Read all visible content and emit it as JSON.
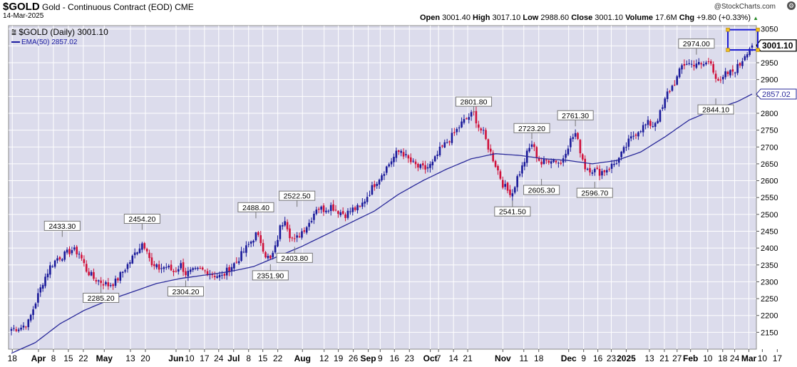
{
  "header": {
    "symbol": "$GOLD",
    "description": "Gold - Continuous Contract (EOD)",
    "exchange": "CME",
    "date": "14-Mar-2025",
    "brand": "@StockCharts.com",
    "open_label": "Open",
    "open": "3001.40",
    "high_label": "High",
    "high": "3017.10",
    "low_label": "Low",
    "low": "2988.60",
    "close_label": "Close",
    "close": "3001.10",
    "volume_label": "Volume",
    "volume": "17.6M",
    "chg_label": "Chg",
    "chg": "+9.80 (+0.33%)"
  },
  "legend": {
    "main": "$GOLD (Daily) 3001.10",
    "ema": "EMA(50) 2857.02"
  },
  "colors": {
    "up": "#1a1a9a",
    "down": "#d0103a",
    "ema": "#2a2a9a",
    "plot_bg": "#dcdcec",
    "grid": "#ffffff",
    "box": "#1a1ad0",
    "box_handle": "#f0c020"
  },
  "chart_data": {
    "type": "candlestick",
    "ylim": [
      2100,
      3060
    ],
    "yticks": [
      2150,
      2200,
      2250,
      2300,
      2350,
      2400,
      2450,
      2500,
      2550,
      2600,
      2650,
      2700,
      2750,
      2800,
      2850,
      2900,
      2950,
      3000,
      3050
    ],
    "price_badge": "3001.10",
    "ema_badge": "2857.02",
    "x_ticks": [
      {
        "label": "18",
        "bold": false,
        "x": 0.005
      },
      {
        "label": "Apr",
        "bold": true,
        "x": 0.04
      },
      {
        "label": "8",
        "bold": false,
        "x": 0.06
      },
      {
        "label": "15",
        "bold": false,
        "x": 0.08
      },
      {
        "label": "22",
        "bold": false,
        "x": 0.1
      },
      {
        "label": "May",
        "bold": true,
        "x": 0.128
      },
      {
        "label": "13",
        "bold": false,
        "x": 0.163
      },
      {
        "label": "20",
        "bold": false,
        "x": 0.183
      },
      {
        "label": "Jun",
        "bold": true,
        "x": 0.224
      },
      {
        "label": "10",
        "bold": false,
        "x": 0.242
      },
      {
        "label": "17",
        "bold": false,
        "x": 0.262
      },
      {
        "label": "24",
        "bold": false,
        "x": 0.281
      },
      {
        "label": "Jul",
        "bold": true,
        "x": 0.301
      },
      {
        "label": "8",
        "bold": false,
        "x": 0.321
      },
      {
        "label": "15",
        "bold": false,
        "x": 0.34
      },
      {
        "label": "22",
        "bold": false,
        "x": 0.36
      },
      {
        "label": "Aug",
        "bold": true,
        "x": 0.393
      },
      {
        "label": "12",
        "bold": false,
        "x": 0.422
      },
      {
        "label": "19",
        "bold": false,
        "x": 0.441
      },
      {
        "label": "26",
        "bold": false,
        "x": 0.461
      },
      {
        "label": "Sep",
        "bold": true,
        "x": 0.481
      },
      {
        "label": "9",
        "bold": false,
        "x": 0.497
      },
      {
        "label": "16",
        "bold": false,
        "x": 0.516
      },
      {
        "label": "23",
        "bold": false,
        "x": 0.536
      },
      {
        "label": "Oct",
        "bold": true,
        "x": 0.564
      },
      {
        "label": "7",
        "bold": false,
        "x": 0.575
      },
      {
        "label": "14",
        "bold": false,
        "x": 0.595
      },
      {
        "label": "21",
        "bold": false,
        "x": 0.614
      },
      {
        "label": "Nov",
        "bold": true,
        "x": 0.661
      },
      {
        "label": "11",
        "bold": false,
        "x": 0.689
      },
      {
        "label": "18",
        "bold": false,
        "x": 0.709
      },
      {
        "label": "Dec",
        "bold": true,
        "x": 0.749
      },
      {
        "label": "9",
        "bold": false,
        "x": 0.769
      },
      {
        "label": "16",
        "bold": false,
        "x": 0.788
      },
      {
        "label": "23",
        "bold": false,
        "x": 0.806
      },
      {
        "label": "2025",
        "bold": true,
        "x": 0.826
      },
      {
        "label": "13",
        "bold": false,
        "x": 0.857
      },
      {
        "label": "21",
        "bold": false,
        "x": 0.877
      },
      {
        "label": "27",
        "bold": false,
        "x": 0.894
      },
      {
        "label": "Feb",
        "bold": true,
        "x": 0.912
      },
      {
        "label": "10",
        "bold": false,
        "x": 0.935
      },
      {
        "label": "18",
        "bold": false,
        "x": 0.955
      },
      {
        "label": "24",
        "bold": false,
        "x": 0.971
      },
      {
        "label": "Mar",
        "bold": true,
        "x": 0.99
      },
      {
        "label": "10",
        "bold": false,
        "x": 1.008
      },
      {
        "label": "17",
        "bold": false,
        "x": 1.028
      }
    ],
    "anchors": [
      [
        0,
        2160
      ],
      [
        4,
        2165
      ],
      [
        7,
        2180
      ],
      [
        10,
        2240
      ],
      [
        13,
        2300
      ],
      [
        16,
        2345
      ],
      [
        19,
        2370
      ],
      [
        22,
        2380
      ],
      [
        25,
        2395
      ],
      [
        28,
        2385
      ],
      [
        31,
        2335
      ],
      [
        34,
        2310
      ],
      [
        37,
        2300
      ],
      [
        40,
        2290
      ],
      [
        43,
        2300
      ],
      [
        46,
        2330
      ],
      [
        49,
        2360
      ],
      [
        52,
        2395
      ],
      [
        54,
        2415
      ],
      [
        56,
        2400
      ],
      [
        58,
        2345
      ],
      [
        61,
        2340
      ],
      [
        64,
        2345
      ],
      [
        67,
        2330
      ],
      [
        70,
        2350
      ],
      [
        72,
        2325
      ],
      [
        75,
        2330
      ],
      [
        78,
        2335
      ],
      [
        81,
        2330
      ],
      [
        84,
        2320
      ],
      [
        87,
        2315
      ],
      [
        90,
        2340
      ],
      [
        93,
        2360
      ],
      [
        96,
        2390
      ],
      [
        99,
        2420
      ],
      [
        101,
        2440
      ],
      [
        103,
        2420
      ],
      [
        105,
        2380
      ],
      [
        107,
        2365
      ],
      [
        109,
        2400
      ],
      [
        111,
        2460
      ],
      [
        113,
        2490
      ],
      [
        115,
        2440
      ],
      [
        117,
        2420
      ],
      [
        120,
        2450
      ],
      [
        123,
        2475
      ],
      [
        126,
        2520
      ],
      [
        129,
        2515
      ],
      [
        132,
        2525
      ],
      [
        135,
        2510
      ],
      [
        138,
        2500
      ],
      [
        141,
        2515
      ],
      [
        144,
        2520
      ],
      [
        147,
        2555
      ],
      [
        150,
        2590
      ],
      [
        153,
        2620
      ],
      [
        156,
        2650
      ],
      [
        159,
        2680
      ],
      [
        161,
        2690
      ],
      [
        163,
        2670
      ],
      [
        165,
        2655
      ],
      [
        168,
        2640
      ],
      [
        171,
        2635
      ],
      [
        174,
        2650
      ],
      [
        177,
        2690
      ],
      [
        180,
        2715
      ],
      [
        183,
        2740
      ],
      [
        186,
        2770
      ],
      [
        189,
        2790
      ],
      [
        191,
        2800
      ],
      [
        193,
        2760
      ],
      [
        195,
        2740
      ],
      [
        197,
        2700
      ],
      [
        199,
        2665
      ],
      [
        201,
        2630
      ],
      [
        203,
        2590
      ],
      [
        205,
        2570
      ],
      [
        207,
        2565
      ],
      [
        209,
        2610
      ],
      [
        211,
        2640
      ],
      [
        213,
        2680
      ],
      [
        215,
        2710
      ],
      [
        217,
        2675
      ],
      [
        219,
        2650
      ],
      [
        221,
        2660
      ],
      [
        223,
        2665
      ],
      [
        225,
        2660
      ],
      [
        227,
        2650
      ],
      [
        229,
        2690
      ],
      [
        231,
        2720
      ],
      [
        233,
        2740
      ],
      [
        235,
        2690
      ],
      [
        237,
        2640
      ],
      [
        239,
        2635
      ],
      [
        241,
        2630
      ],
      [
        243,
        2625
      ],
      [
        245,
        2630
      ],
      [
        247,
        2640
      ],
      [
        249,
        2650
      ],
      [
        251,
        2665
      ],
      [
        253,
        2690
      ],
      [
        255,
        2715
      ],
      [
        257,
        2735
      ],
      [
        259,
        2750
      ],
      [
        261,
        2760
      ],
      [
        263,
        2770
      ],
      [
        265,
        2765
      ],
      [
        267,
        2785
      ],
      [
        269,
        2815
      ],
      [
        271,
        2860
      ],
      [
        273,
        2880
      ],
      [
        275,
        2905
      ],
      [
        277,
        2940
      ],
      [
        279,
        2950
      ],
      [
        281,
        2945
      ],
      [
        283,
        2950
      ],
      [
        285,
        2940
      ],
      [
        287,
        2950
      ],
      [
        289,
        2950
      ],
      [
        291,
        2910
      ],
      [
        293,
        2890
      ],
      [
        295,
        2915
      ],
      [
        297,
        2920
      ],
      [
        299,
        2930
      ],
      [
        301,
        2945
      ],
      [
        303,
        2975
      ],
      [
        305,
        2995
      ],
      [
        306,
        3001
      ]
    ],
    "ema": [
      [
        0,
        2088
      ],
      [
        10,
        2120
      ],
      [
        20,
        2175
      ],
      [
        30,
        2215
      ],
      [
        40,
        2245
      ],
      [
        50,
        2270
      ],
      [
        60,
        2295
      ],
      [
        70,
        2310
      ],
      [
        80,
        2320
      ],
      [
        90,
        2330
      ],
      [
        100,
        2345
      ],
      [
        110,
        2375
      ],
      [
        120,
        2405
      ],
      [
        130,
        2440
      ],
      [
        140,
        2475
      ],
      [
        150,
        2510
      ],
      [
        160,
        2560
      ],
      [
        170,
        2600
      ],
      [
        180,
        2635
      ],
      [
        190,
        2665
      ],
      [
        200,
        2680
      ],
      [
        210,
        2675
      ],
      [
        220,
        2665
      ],
      [
        230,
        2660
      ],
      [
        240,
        2650
      ],
      [
        250,
        2660
      ],
      [
        260,
        2685
      ],
      [
        270,
        2730
      ],
      [
        280,
        2780
      ],
      [
        290,
        2810
      ],
      [
        300,
        2835
      ],
      [
        306,
        2857
      ]
    ],
    "annotations": [
      {
        "label": "2433.30",
        "i": 21,
        "v": 2433.3,
        "pos": "above"
      },
      {
        "label": "2285.20",
        "i": 37,
        "v": 2285.2,
        "pos": "below"
      },
      {
        "label": "2454.20",
        "i": 54,
        "v": 2454.2,
        "pos": "above"
      },
      {
        "label": "2304.20",
        "i": 72,
        "v": 2304.2,
        "pos": "below"
      },
      {
        "label": "2488.40",
        "i": 101,
        "v": 2488.4,
        "pos": "above"
      },
      {
        "label": "2351.90",
        "i": 107,
        "v": 2351.9,
        "pos": "below"
      },
      {
        "label": "2403.80",
        "i": 117,
        "v": 2403.8,
        "pos": "below"
      },
      {
        "label": "2522.50",
        "i": 118,
        "v": 2522.5,
        "pos": "above"
      },
      {
        "label": "2801.80",
        "i": 191,
        "v": 2801.8,
        "pos": "above"
      },
      {
        "label": "2541.50",
        "i": 207,
        "v": 2541.5,
        "pos": "below"
      },
      {
        "label": "2605.30",
        "i": 219,
        "v": 2605.3,
        "pos": "below"
      },
      {
        "label": "2723.20",
        "i": 215,
        "v": 2723.2,
        "pos": "above"
      },
      {
        "label": "2761.30",
        "i": 233,
        "v": 2761.3,
        "pos": "above"
      },
      {
        "label": "2596.70",
        "i": 241,
        "v": 2596.7,
        "pos": "below"
      },
      {
        "label": "2974.00",
        "i": 283,
        "v": 2974.0,
        "pos": "above"
      },
      {
        "label": "2844.10",
        "i": 291,
        "v": 2844.1,
        "pos": "below"
      }
    ]
  }
}
